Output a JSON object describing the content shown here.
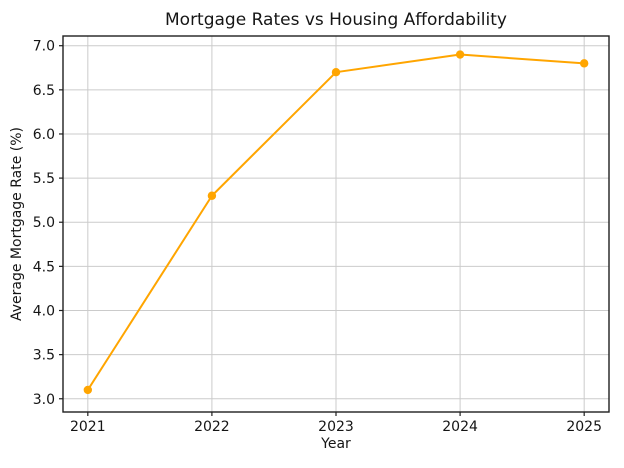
{
  "chart_data": {
    "type": "line",
    "title": "Mortgage Rates vs Housing Affordability",
    "xlabel": "Year",
    "ylabel": "Average Mortgage Rate (%)",
    "categories": [
      "2021",
      "2022",
      "2023",
      "2024",
      "2025"
    ],
    "series": [
      {
        "name": "Average Mortgage Rate (%)",
        "values": [
          3.1,
          5.3,
          6.7,
          6.9,
          6.8
        ]
      }
    ],
    "ytick_labels": [
      "3.0",
      "3.5",
      "4.0",
      "4.5",
      "5.0",
      "5.5",
      "6.0",
      "6.5",
      "7.0"
    ],
    "xlim": [
      2020.8,
      2025.2
    ],
    "ylim": [
      2.85,
      7.11
    ],
    "grid": true,
    "legend_position": "none",
    "line_color": "#FFA500",
    "marker": "circle",
    "grid_color": "#cbcbcb",
    "spine_color": "#1f1f1f",
    "text_color": "#151515",
    "background_color": "#ffffff"
  }
}
